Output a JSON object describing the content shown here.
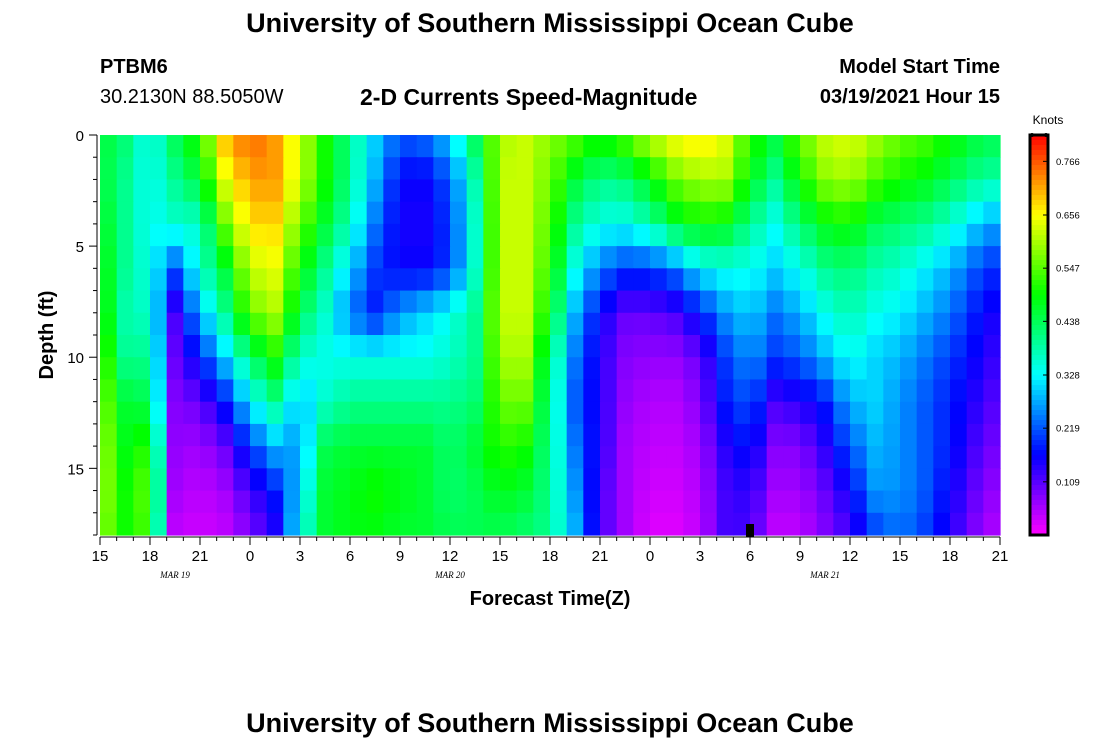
{
  "header": {
    "title": "University of Southern Mississippi Ocean Cube",
    "station": "PTBM6",
    "coords": "30.2130N 88.5050W",
    "variable": "2-D Currents Speed-Magnitude",
    "start_label": "Model Start Time",
    "start_value": "03/19/2021 Hour 15"
  },
  "footer": {
    "title": "University of Southern Mississippi Ocean Cube"
  },
  "chart_data": {
    "type": "heatmap",
    "title": "2-D Currents Speed-Magnitude",
    "xlabel": "Forecast Time(Z)",
    "ylabel": "Depth (ft)",
    "x_tick_labels": [
      "15",
      "18",
      "21",
      "0",
      "3",
      "6",
      "9",
      "12",
      "15",
      "18",
      "21",
      "0",
      "3",
      "6",
      "9",
      "12",
      "15",
      "18",
      "21"
    ],
    "x_range_hours": [
      0,
      54
    ],
    "date_labels": [
      {
        "label": "MAR 19",
        "hour": 4.5
      },
      {
        "label": "MAR 20",
        "hour": 21
      },
      {
        "label": "MAR 21",
        "hour": 43.5
      }
    ],
    "y_ticks": [
      0,
      5,
      10,
      15
    ],
    "ylim": [
      0,
      18
    ],
    "colorbar": {
      "label": "Knots",
      "ticks": [
        "0.766",
        "0.656",
        "0.547",
        "0.438",
        "0.328",
        "0.219",
        "0.109"
      ],
      "range": [
        0,
        0.82
      ]
    },
    "current_time_marker_hour": 39,
    "speed_grid": {
      "hours": [
        0,
        1.5,
        3,
        4.5,
        6,
        7.5,
        9,
        10.5,
        12,
        13.5,
        15,
        16.5,
        18,
        19.5,
        21,
        22.5,
        24,
        25.5,
        27,
        28.5,
        30,
        31.5,
        33,
        34.5,
        36,
        37.5,
        39,
        40.5,
        42,
        43.5,
        45,
        46.5,
        48,
        49.5,
        51,
        52.5,
        54
      ],
      "depths_ft": [
        0,
        2,
        4,
        6,
        8,
        10,
        12,
        14,
        16,
        18
      ],
      "values": [
        [
          0.46,
          0.42,
          0.33,
          0.44,
          0.52,
          0.7,
          0.76,
          0.72,
          0.62,
          0.5,
          0.4,
          0.3,
          0.22,
          0.24,
          0.3,
          0.44,
          0.6,
          0.62,
          0.58,
          0.55,
          0.5,
          0.55,
          0.62,
          0.66,
          0.68,
          0.64,
          0.52,
          0.46,
          0.56,
          0.62,
          0.64,
          0.6,
          0.56,
          0.54,
          0.5,
          0.46,
          0.44
        ],
        [
          0.46,
          0.4,
          0.33,
          0.4,
          0.46,
          0.64,
          0.72,
          0.72,
          0.62,
          0.5,
          0.4,
          0.28,
          0.16,
          0.16,
          0.22,
          0.38,
          0.62,
          0.62,
          0.56,
          0.46,
          0.4,
          0.42,
          0.48,
          0.56,
          0.6,
          0.6,
          0.48,
          0.4,
          0.5,
          0.58,
          0.6,
          0.54,
          0.5,
          0.48,
          0.44,
          0.4,
          0.38
        ],
        [
          0.48,
          0.4,
          0.33,
          0.36,
          0.36,
          0.56,
          0.68,
          0.68,
          0.56,
          0.46,
          0.37,
          0.24,
          0.15,
          0.15,
          0.2,
          0.36,
          0.62,
          0.62,
          0.54,
          0.4,
          0.34,
          0.34,
          0.38,
          0.46,
          0.5,
          0.48,
          0.4,
          0.34,
          0.42,
          0.48,
          0.5,
          0.44,
          0.42,
          0.4,
          0.36,
          0.3,
          0.26
        ],
        [
          0.5,
          0.4,
          0.34,
          0.22,
          0.36,
          0.46,
          0.62,
          0.64,
          0.5,
          0.4,
          0.3,
          0.2,
          0.16,
          0.16,
          0.2,
          0.36,
          0.62,
          0.62,
          0.52,
          0.34,
          0.24,
          0.2,
          0.2,
          0.24,
          0.32,
          0.34,
          0.34,
          0.3,
          0.34,
          0.4,
          0.42,
          0.38,
          0.36,
          0.32,
          0.28,
          0.22,
          0.18
        ],
        [
          0.52,
          0.38,
          0.36,
          0.12,
          0.28,
          0.4,
          0.56,
          0.6,
          0.44,
          0.36,
          0.24,
          0.18,
          0.26,
          0.3,
          0.34,
          0.4,
          0.62,
          0.62,
          0.48,
          0.28,
          0.16,
          0.1,
          0.1,
          0.12,
          0.18,
          0.26,
          0.3,
          0.24,
          0.28,
          0.34,
          0.38,
          0.34,
          0.32,
          0.28,
          0.24,
          0.18,
          0.14
        ],
        [
          0.56,
          0.4,
          0.4,
          0.1,
          0.18,
          0.3,
          0.42,
          0.5,
          0.36,
          0.34,
          0.34,
          0.34,
          0.34,
          0.34,
          0.36,
          0.4,
          0.6,
          0.6,
          0.42,
          0.24,
          0.14,
          0.08,
          0.07,
          0.07,
          0.1,
          0.2,
          0.26,
          0.2,
          0.22,
          0.28,
          0.34,
          0.3,
          0.28,
          0.24,
          0.2,
          0.16,
          0.12
        ],
        [
          0.58,
          0.46,
          0.44,
          0.08,
          0.1,
          0.18,
          0.32,
          0.4,
          0.28,
          0.36,
          0.4,
          0.4,
          0.4,
          0.4,
          0.4,
          0.42,
          0.56,
          0.56,
          0.4,
          0.22,
          0.14,
          0.07,
          0.05,
          0.05,
          0.08,
          0.18,
          0.22,
          0.12,
          0.14,
          0.18,
          0.28,
          0.3,
          0.26,
          0.22,
          0.18,
          0.14,
          0.1
        ],
        [
          0.6,
          0.48,
          0.52,
          0.07,
          0.06,
          0.1,
          0.2,
          0.28,
          0.26,
          0.44,
          0.46,
          0.46,
          0.46,
          0.46,
          0.42,
          0.46,
          0.52,
          0.5,
          0.4,
          0.24,
          0.14,
          0.06,
          0.04,
          0.04,
          0.06,
          0.14,
          0.18,
          0.08,
          0.08,
          0.14,
          0.22,
          0.28,
          0.26,
          0.22,
          0.18,
          0.12,
          0.08
        ],
        [
          0.6,
          0.5,
          0.56,
          0.06,
          0.04,
          0.06,
          0.12,
          0.18,
          0.3,
          0.46,
          0.48,
          0.5,
          0.48,
          0.46,
          0.42,
          0.44,
          0.48,
          0.46,
          0.4,
          0.26,
          0.12,
          0.06,
          0.03,
          0.03,
          0.05,
          0.12,
          0.14,
          0.06,
          0.06,
          0.1,
          0.16,
          0.26,
          0.26,
          0.22,
          0.16,
          0.1,
          0.06
        ],
        [
          0.58,
          0.5,
          0.54,
          0.04,
          0.03,
          0.04,
          0.08,
          0.14,
          0.34,
          0.46,
          0.48,
          0.48,
          0.46,
          0.46,
          0.44,
          0.44,
          0.44,
          0.42,
          0.4,
          0.28,
          0.12,
          0.06,
          0.02,
          0.02,
          0.04,
          0.12,
          0.12,
          0.04,
          0.04,
          0.08,
          0.12,
          0.2,
          0.24,
          0.2,
          0.14,
          0.08,
          0.04
        ]
      ]
    }
  }
}
